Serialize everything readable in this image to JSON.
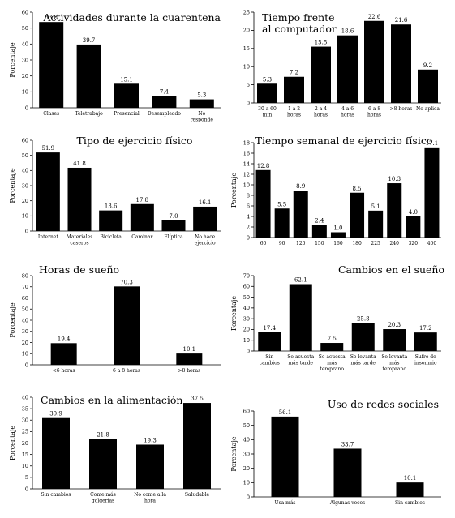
{
  "chart_data": [
    {
      "type": "bar",
      "title": "Actividades durante la cuarentena",
      "ylabel": "Porcentaje",
      "ylim": [
        0,
        60
      ],
      "yticks": [
        0,
        10,
        20,
        30,
        40,
        50,
        60
      ],
      "categories": [
        [
          "Clases"
        ],
        [
          "Teletrabajo"
        ],
        [
          "Presencial"
        ],
        [
          "Desempleado"
        ],
        [
          "No",
          "responde"
        ]
      ],
      "values": [
        53.8,
        39.7,
        15.1,
        7.4,
        5.3
      ],
      "title_position": "top-right"
    },
    {
      "type": "bar",
      "title": [
        "Tiempo frente",
        "al computador"
      ],
      "ylabel": "",
      "ylim": [
        0,
        25
      ],
      "yticks": [
        0,
        5,
        10,
        15,
        20,
        25
      ],
      "categories": [
        [
          "30 a 60",
          "min"
        ],
        [
          "1 a 2",
          "horas"
        ],
        [
          "2 a 4",
          "horas"
        ],
        [
          "4 a 6",
          "horas"
        ],
        [
          "6 a 8",
          "horas"
        ],
        [
          ">8 horas"
        ],
        [
          "No aplica"
        ]
      ],
      "values": [
        5.3,
        7.2,
        15.5,
        18.6,
        22.6,
        21.6,
        9.2
      ],
      "title_position": "top-left"
    },
    {
      "type": "bar",
      "title": "Tipo de ejercicio físico",
      "ylabel": "Porcentaje",
      "ylim": [
        0,
        60
      ],
      "yticks": [
        0,
        10,
        20,
        30,
        40,
        50,
        60
      ],
      "categories": [
        [
          "Internet"
        ],
        [
          "Materiales",
          "caseros"
        ],
        [
          "Bicicleta"
        ],
        [
          "Caminar"
        ],
        [
          "Elíptica"
        ],
        [
          "No hace",
          "ejercicio"
        ]
      ],
      "values": [
        51.9,
        41.8,
        13.6,
        17.8,
        7.0,
        16.1
      ],
      "title_position": "top-center"
    },
    {
      "type": "bar",
      "title": "Tiempo semanal de ejercicio físico",
      "ylabel": "Porcentaje",
      "ylim": [
        0,
        18
      ],
      "yticks": [
        0,
        2,
        4,
        6,
        8,
        10,
        12,
        14,
        16,
        18
      ],
      "categories": [
        [
          "60"
        ],
        [
          "90"
        ],
        [
          "120"
        ],
        [
          "150"
        ],
        [
          "160"
        ],
        [
          "180"
        ],
        [
          "225"
        ],
        [
          "240"
        ],
        [
          "320"
        ],
        [
          "400"
        ]
      ],
      "values": [
        12.8,
        5.5,
        8.9,
        2.4,
        1.0,
        8.5,
        5.1,
        10.3,
        4.0,
        17.1
      ],
      "title_position": "top-center"
    },
    {
      "type": "bar",
      "title": "Horas de sueño",
      "ylabel": "Porcentaje",
      "ylim": [
        0,
        80
      ],
      "yticks": [
        0,
        10,
        20,
        30,
        40,
        50,
        60,
        70,
        80
      ],
      "categories": [
        [
          "<6 horas"
        ],
        [
          "6 a 8 horas"
        ],
        [
          ">8 horas"
        ]
      ],
      "values": [
        19.4,
        70.3,
        10.1
      ],
      "title_position": "top-left"
    },
    {
      "type": "bar",
      "title": "Cambios en el sueño",
      "ylabel": "Porcentaje",
      "ylim": [
        0,
        70
      ],
      "yticks": [
        0,
        10,
        20,
        30,
        40,
        50,
        60,
        70
      ],
      "categories": [
        [
          "Sin",
          "cambios"
        ],
        [
          "Se acuesta",
          "más tarde"
        ],
        [
          "Se acuesta",
          "más",
          "temprano"
        ],
        [
          "Se levanta",
          "más tarde"
        ],
        [
          "Se levanta",
          "más",
          "temprano"
        ],
        [
          "Sufre de",
          "insomnio"
        ]
      ],
      "values": [
        17.4,
        62.1,
        7.5,
        25.8,
        20.3,
        17.2
      ],
      "title_position": "top-right"
    },
    {
      "type": "bar",
      "title": "Cambios en la alimentación",
      "ylabel": "Porcentaje",
      "ylim": [
        0,
        40
      ],
      "yticks": [
        0,
        5,
        10,
        15,
        20,
        25,
        30,
        35,
        40
      ],
      "categories": [
        [
          "Sin cambios"
        ],
        [
          "Come más",
          "golgerías"
        ],
        [
          "No come a la",
          "hora"
        ],
        [
          "Saludable"
        ]
      ],
      "values": [
        30.9,
        21.8,
        19.3,
        37.5
      ],
      "title_position": "top-left"
    },
    {
      "type": "bar",
      "title": "Uso de redes sociales",
      "ylabel": "Porcentaje",
      "ylim": [
        0,
        60
      ],
      "yticks": [
        0,
        10,
        20,
        30,
        40,
        50,
        60
      ],
      "categories": [
        [
          "Usa más"
        ],
        [
          "Algunas veces"
        ],
        [
          "Sin cambios"
        ]
      ],
      "values": [
        56.1,
        33.7,
        10.1
      ],
      "title_position": "top-right"
    }
  ]
}
